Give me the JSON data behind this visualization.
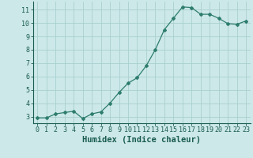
{
  "x": [
    0,
    1,
    2,
    3,
    4,
    5,
    6,
    7,
    8,
    9,
    10,
    11,
    12,
    13,
    14,
    15,
    16,
    17,
    18,
    19,
    20,
    21,
    22,
    23
  ],
  "y": [
    2.9,
    2.9,
    3.2,
    3.3,
    3.4,
    2.85,
    3.2,
    3.35,
    4.0,
    4.8,
    5.5,
    5.9,
    6.8,
    8.0,
    9.5,
    10.35,
    11.2,
    11.15,
    10.65,
    10.65,
    10.35,
    9.95,
    9.9,
    10.15
  ],
  "line_color": "#2e7d6e",
  "marker": "D",
  "marker_size": 2.0,
  "bg_color": "#cce8e8",
  "grid_color": "#aacfcf",
  "xlabel": "Humidex (Indice chaleur)",
  "xlim": [
    -0.5,
    23.5
  ],
  "ylim": [
    2.5,
    11.6
  ],
  "yticks": [
    3,
    4,
    5,
    6,
    7,
    8,
    9,
    10,
    11
  ],
  "xticks": [
    0,
    1,
    2,
    3,
    4,
    5,
    6,
    7,
    8,
    9,
    10,
    11,
    12,
    13,
    14,
    15,
    16,
    17,
    18,
    19,
    20,
    21,
    22,
    23
  ],
  "tick_fontsize": 6.0,
  "xlabel_fontsize": 7.5,
  "label_color": "#1a5c50"
}
